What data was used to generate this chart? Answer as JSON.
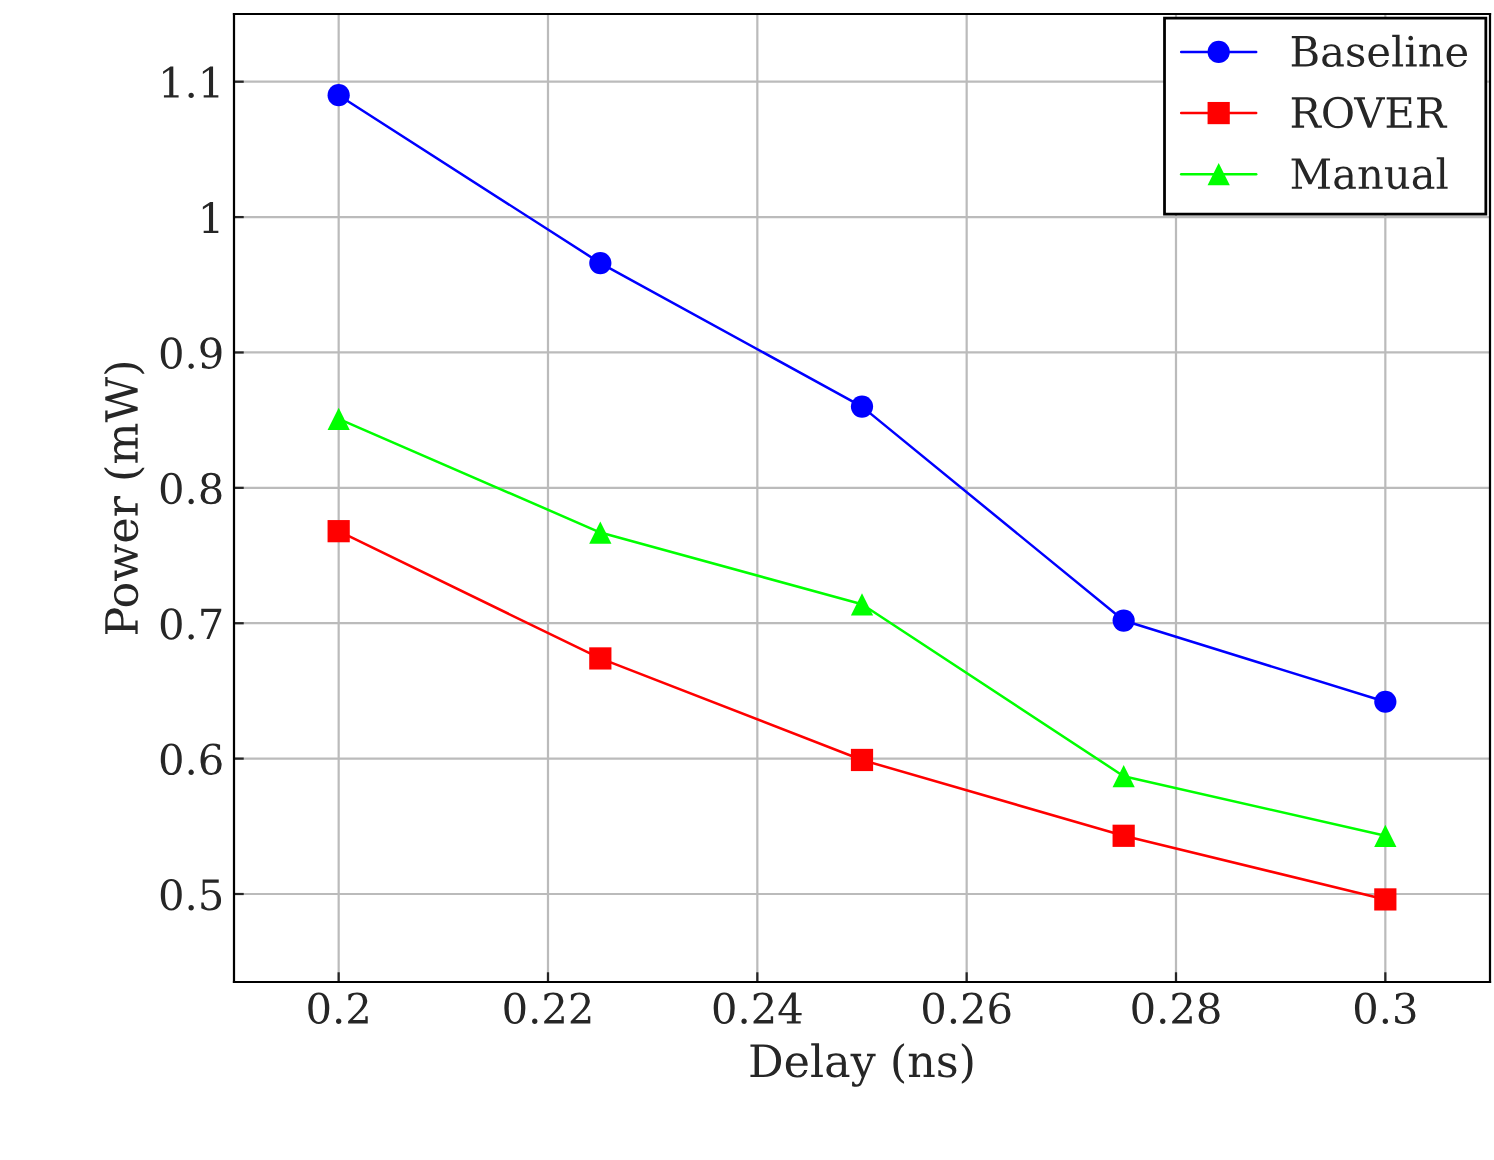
{
  "chart_data": {
    "type": "line",
    "xlabel": "Delay (ns)",
    "ylabel": "Power (mW)",
    "x": [
      0.2,
      0.225,
      0.25,
      0.275,
      0.3
    ],
    "series": [
      {
        "name": "Baseline",
        "color": "#0000ff",
        "marker": "circle",
        "values": [
          1.09,
          0.966,
          0.86,
          0.702,
          0.642
        ]
      },
      {
        "name": "ROVER",
        "color": "#ff0000",
        "marker": "square",
        "values": [
          0.768,
          0.674,
          0.599,
          0.543,
          0.496
        ]
      },
      {
        "name": "Manual",
        "color": "#00ff00",
        "marker": "triangle",
        "values": [
          0.851,
          0.767,
          0.714,
          0.587,
          0.543
        ]
      }
    ],
    "xlim": [
      0.19,
      0.31
    ],
    "ylim": [
      0.435,
      1.15
    ],
    "xticks": [
      0.2,
      0.22,
      0.24,
      0.26,
      0.28,
      0.3
    ],
    "yticks": [
      0.5,
      0.6,
      0.7,
      0.8,
      0.9,
      1,
      1.1
    ],
    "grid": true,
    "legend": "top right"
  }
}
